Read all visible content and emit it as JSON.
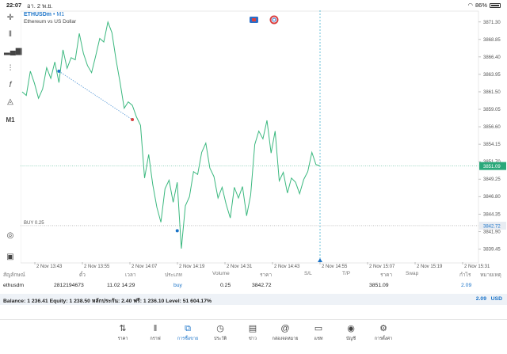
{
  "status": {
    "time": "22:07",
    "date": "อา. 2 พ.ย.",
    "battery": "86%"
  },
  "chart": {
    "symbol": "ETHUSDm",
    "timeframe": "M1",
    "description": "Ethereum vs US Dollar",
    "price_ticks": [
      "3871.30",
      "3868.85",
      "3866.40",
      "3863.95",
      "3861.50",
      "3859.05",
      "3856.60",
      "3854.15",
      "3851.70",
      "3849.25",
      "3846.80",
      "3844.35",
      "3841.90",
      "3839.45"
    ],
    "current_price": "3851.09",
    "buy_line_label": "BUY 0.25",
    "buy_line_price": "3842.72",
    "time_ticks": [
      "2 Nov 13:43",
      "2 Nov 13:55",
      "2 Nov 14:07",
      "2 Nov 14:19",
      "2 Nov 14:31",
      "2 Nov 14:43",
      "2 Nov 14:55",
      "2 Nov 15:07",
      "2 Nov 15:19",
      "2 Nov 15:31",
      "2 Nov 15:43"
    ]
  },
  "chart_data": {
    "type": "line",
    "title": "ETHUSDm • M1",
    "subtitle": "Ethereum vs US Dollar",
    "xlabel": "",
    "ylabel": "",
    "ylim": [
      3837.6,
      3872.5
    ],
    "x_labels": [
      "2 Nov 13:43",
      "2 Nov 13:55",
      "2 Nov 14:07",
      "2 Nov 14:19",
      "2 Nov 14:31",
      "2 Nov 14:43",
      "2 Nov 14:55",
      "2 Nov 15:07",
      "2 Nov 15:19",
      "2 Nov 15:31",
      "2 Nov 15:43"
    ],
    "grid": false,
    "series": [
      {
        "values": [
          3861.5,
          3861.0,
          3864.4,
          3862.7,
          3860.6,
          3861.9,
          3864.9,
          3863.4,
          3865.7,
          3862.8,
          3867.4,
          3864.8,
          3866.3,
          3866.0,
          3869.7,
          3866.9,
          3865.2,
          3864.2,
          3866.5,
          3869.0,
          3868.5,
          3871.3,
          3869.8,
          3866.0,
          3862.8,
          3859.2,
          3860.1,
          3859.6,
          3858.0,
          3856.8,
          3849.4,
          3852.7,
          3848.5,
          3845.3,
          3843.2,
          3847.9,
          3849.1,
          3846.0,
          3848.8,
          3839.5,
          3845.5,
          3846.8,
          3850.3,
          3849.9,
          3853.0,
          3854.3,
          3850.8,
          3849.6,
          3846.6,
          3848.1,
          3845.7,
          3843.8,
          3848.1,
          3846.6,
          3848.2,
          3844.1,
          3847.0,
          3854.1,
          3856.0,
          3854.9,
          3857.5,
          3852.9,
          3856.0,
          3849.0,
          3850.2,
          3847.3,
          3849.4,
          3848.8,
          3847.2,
          3849.2,
          3850.3,
          3853.0,
          3851.3,
          3851.1
        ]
      }
    ],
    "markers": [
      {
        "label": "buy-entry",
        "price": 3864.4
      },
      {
        "label": "exit",
        "price": 3857.6
      },
      {
        "label": "low",
        "price": 3842.0
      }
    ]
  },
  "toolbar": [
    "crosshair-icon",
    "candles-icon",
    "bars-icon",
    "indicators-icon",
    "function-icon",
    "objects-icon",
    "M1"
  ],
  "table": {
    "headers": [
      "สัญลักษณ์",
      "ตั๋ว",
      "เวลา",
      "ประเภท",
      "Volume",
      "ราคา",
      "S/L",
      "T/P",
      "ราคา",
      "Swap",
      "กำไร",
      "หมายเหตุ"
    ],
    "row": [
      "ethusdm",
      "2812194673",
      "11.02 14:29",
      "buy",
      "0.25",
      "3842.72",
      "",
      "",
      "3851.09",
      "",
      "2.09",
      ""
    ]
  },
  "balance": {
    "text": "Balance: 1 236.41 Equity: 1 238.50 หลักประกัน: 2.40 ฟรี: 1 236.10 Level: 51 604.17%",
    "profit": "2.09",
    "currency": "USD"
  },
  "nav": [
    {
      "label": "ราคา",
      "icon": "quotes-icon"
    },
    {
      "label": "กราฟ",
      "icon": "chart-icon"
    },
    {
      "label": "การซื้อขาย",
      "icon": "trade-icon"
    },
    {
      "label": "ประวัติ",
      "icon": "history-icon"
    },
    {
      "label": "ข่าว",
      "icon": "news-icon"
    },
    {
      "label": "กล่องจดหมาย",
      "icon": "mail-icon"
    },
    {
      "label": "แชท",
      "icon": "chat-icon"
    },
    {
      "label": "บัญชี",
      "icon": "account-icon"
    },
    {
      "label": "การตั้งค่า",
      "icon": "settings-icon"
    }
  ]
}
